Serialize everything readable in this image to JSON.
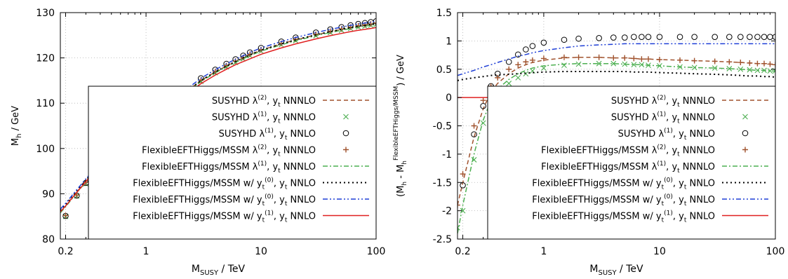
{
  "chart_data": [
    {
      "type": "line",
      "xscale": "log",
      "xlim": [
        0.18,
        100
      ],
      "ylim": [
        80,
        130
      ],
      "xticks": [
        0.2,
        1,
        10,
        100
      ],
      "xtick_labels": [
        "0.2",
        "1",
        "10",
        "100"
      ],
      "yticks": [
        80,
        90,
        100,
        110,
        120,
        130
      ],
      "ytick_labels": [
        "80",
        "90",
        "100",
        "110",
        "120",
        "130"
      ],
      "xlabel": {
        "main": "M",
        "sub": "SUSY",
        "rest": " / TeV"
      },
      "ylabel": {
        "main": "M",
        "sub": "h",
        "rest": " / GeV"
      },
      "grid": true,
      "legend_position": "bottom-right",
      "x": [
        0.18,
        0.2,
        0.25,
        0.3,
        0.4,
        0.5,
        0.6,
        0.7,
        0.8,
        0.9,
        1,
        1.5,
        2,
        3,
        4,
        5,
        6,
        7,
        8,
        10,
        15,
        20,
        30,
        40,
        50,
        60,
        70,
        80,
        90,
        100
      ],
      "series": [
        {
          "name": "SUSYHD λ(2), yt NNNLO",
          "style": "dashed",
          "color": "#a0522d",
          "values": [
            86.0,
            87.3,
            90.4,
            92.8,
            96.3,
            98.9,
            100.8,
            102.4,
            103.7,
            104.8,
            105.7,
            109.5,
            111.6,
            115.0,
            116.9,
            118.2,
            119.2,
            120.0,
            120.7,
            121.7,
            123.1,
            124.0,
            125.1,
            125.8,
            126.3,
            126.7,
            127.0,
            127.2,
            127.4,
            127.6
          ]
        },
        {
          "name": "SUSYHD λ(1), yt NNNLO",
          "style": "points",
          "marker": "x",
          "color": "#4caf50",
          "values": [
            null,
            85.0,
            89.5,
            92.2,
            96.0,
            98.6,
            100.6,
            102.2,
            103.5,
            104.6,
            105.5,
            109.3,
            111.4,
            114.8,
            116.7,
            118.0,
            119.0,
            119.8,
            120.5,
            121.5,
            122.9,
            123.8,
            124.9,
            125.6,
            126.1,
            126.5,
            126.8,
            127.0,
            127.2,
            127.4
          ]
        },
        {
          "name": "SUSYHD λ(1), yt NNLO",
          "style": "points",
          "marker": "circle",
          "color": "#000000",
          "values": [
            null,
            85.1,
            89.6,
            92.4,
            96.3,
            98.9,
            101.0,
            102.6,
            104.0,
            105.1,
            106.0,
            109.9,
            112.0,
            115.5,
            117.4,
            118.7,
            119.7,
            120.5,
            121.2,
            122.2,
            123.6,
            124.5,
            125.6,
            126.3,
            126.8,
            127.2,
            127.5,
            127.7,
            127.9,
            128.1
          ]
        },
        {
          "name": "FlexibleEFTHiggs/MSSM λ(2), yt NNNLO",
          "style": "points",
          "marker": "plus",
          "color": "#a0522d",
          "values": [
            null,
            85.2,
            89.7,
            92.5,
            96.4,
            99.0,
            101.0,
            102.6,
            103.9,
            105.0,
            105.9,
            109.7,
            111.7,
            115.1,
            117.0,
            118.3,
            119.3,
            120.1,
            120.8,
            121.8,
            123.2,
            124.1,
            125.2,
            125.9,
            126.4,
            126.8,
            127.1,
            127.3,
            127.5,
            127.7
          ]
        },
        {
          "name": "FlexibleEFTHiggs/MSSM λ(1), yt NNNLO",
          "style": "dashdot",
          "color": "#4caf50",
          "values": [
            85.8,
            87.1,
            90.2,
            92.6,
            96.1,
            98.7,
            100.6,
            102.2,
            103.5,
            104.6,
            105.5,
            109.3,
            111.4,
            114.8,
            116.7,
            118.0,
            119.0,
            119.8,
            120.5,
            121.5,
            122.9,
            123.8,
            124.9,
            125.6,
            126.1,
            126.5,
            126.8,
            127.0,
            127.2,
            127.4
          ]
        },
        {
          "name": "FlexibleEFTHiggs/MSSM w/ yt(0), yt NNLO",
          "style": "dotted",
          "color": "#000000",
          "values": [
            86.3,
            87.6,
            90.6,
            93.0,
            96.5,
            99.0,
            100.9,
            102.5,
            103.8,
            104.9,
            105.8,
            109.5,
            111.6,
            115.0,
            116.9,
            118.2,
            119.2,
            120.0,
            120.7,
            121.7,
            123.1,
            124.0,
            125.1,
            125.8,
            126.3,
            126.7,
            127.0,
            127.2,
            127.4,
            127.6
          ]
        },
        {
          "name": "FlexibleEFTHiggs/MSSM w/ yt(0), yt NNLO",
          "style": "dashdotdot",
          "color": "#1f3fd6",
          "values": [
            86.6,
            87.9,
            90.9,
            93.3,
            96.8,
            99.4,
            101.3,
            102.9,
            104.2,
            105.3,
            106.2,
            110.0,
            112.1,
            115.5,
            117.4,
            118.7,
            119.7,
            120.5,
            121.2,
            122.2,
            123.6,
            124.5,
            125.6,
            126.3,
            126.8,
            127.2,
            127.5,
            127.7,
            127.9,
            128.1
          ]
        },
        {
          "name": "FlexibleEFTHiggs/MSSM w/ yt(1), yt NNLO",
          "style": "solid",
          "color": "#e02020",
          "values": [
            86.0,
            87.3,
            90.3,
            92.7,
            96.2,
            98.7,
            100.6,
            102.1,
            103.4,
            104.4,
            105.3,
            109.0,
            111.0,
            114.3,
            116.2,
            117.5,
            118.5,
            119.2,
            119.8,
            120.8,
            122.2,
            123.1,
            124.2,
            124.9,
            125.4,
            125.8,
            126.1,
            126.3,
            126.5,
            126.7
          ]
        }
      ]
    },
    {
      "type": "line",
      "xscale": "log",
      "xlim": [
        0.18,
        100
      ],
      "ylim": [
        -2.5,
        1.5
      ],
      "xticks": [
        0.2,
        1,
        10,
        100
      ],
      "xtick_labels": [
        "0.2",
        "1",
        "10",
        "100"
      ],
      "yticks": [
        -2.5,
        -2,
        -1.5,
        -1,
        -0.5,
        0,
        0.5,
        1,
        1.5
      ],
      "ytick_labels": [
        "-2.5",
        "-2",
        "-1.5",
        "-1",
        "-0.5",
        "0",
        "0.5",
        "1",
        "1.5"
      ],
      "xlabel": {
        "main": "M",
        "sub": "SUSY",
        "rest": " / TeV"
      },
      "ylabel": {
        "open": "(M",
        "sub1": "h",
        "mid": " - M",
        "sub2": "h",
        "sup": "FlexibleEFTHiggs/MSSM",
        "close": ") / GeV"
      },
      "grid": true,
      "legend_position": "bottom-right",
      "x": [
        0.18,
        0.2,
        0.25,
        0.3,
        0.35,
        0.4,
        0.5,
        0.6,
        0.7,
        0.8,
        1,
        1.5,
        2,
        3,
        4,
        5,
        6,
        7,
        8,
        10,
        15,
        20,
        30,
        40,
        50,
        60,
        70,
        80,
        90,
        100
      ],
      "series": [
        {
          "name": "SUSYHD λ(2), yt NNNLO",
          "style": "dashed",
          "color": "#a0522d",
          "values": [
            -1.9,
            -1.5,
            -0.7,
            -0.2,
            0.1,
            0.25,
            0.42,
            0.52,
            0.58,
            0.62,
            0.66,
            0.7,
            0.71,
            0.71,
            0.7,
            0.7,
            0.69,
            0.68,
            0.68,
            0.67,
            0.66,
            0.65,
            0.64,
            0.63,
            0.62,
            0.61,
            0.6,
            0.6,
            0.59,
            0.58
          ]
        },
        {
          "name": "SUSYHD λ(1), yt NNNLO",
          "style": "points",
          "marker": "x",
          "color": "#4caf50",
          "values": [
            -2.3,
            -2.0,
            -1.1,
            -0.45,
            -0.1,
            0.08,
            0.25,
            0.35,
            0.42,
            0.47,
            0.52,
            0.57,
            0.59,
            0.6,
            0.6,
            0.59,
            0.58,
            0.58,
            0.57,
            0.56,
            0.54,
            0.53,
            0.52,
            0.51,
            0.5,
            0.49,
            0.48,
            0.48,
            0.47,
            0.47
          ]
        },
        {
          "name": "SUSYHD λ(1), yt NNLO",
          "style": "points",
          "marker": "circle",
          "color": "#000000",
          "values": [
            null,
            -1.55,
            -0.65,
            -0.15,
            0.2,
            0.42,
            0.63,
            0.76,
            0.85,
            0.91,
            0.97,
            1.02,
            1.04,
            1.05,
            1.06,
            1.06,
            1.07,
            1.07,
            1.07,
            1.07,
            1.07,
            1.07,
            1.07,
            1.07,
            1.07,
            1.07,
            1.07,
            1.07,
            1.07,
            1.07
          ]
        },
        {
          "name": "FlexibleEFTHiggs/MSSM λ(2), yt NNNLO",
          "style": "points",
          "marker": "plus",
          "color": "#a0522d",
          "values": [
            -1.9,
            -1.35,
            -0.5,
            -0.05,
            0.2,
            0.35,
            0.5,
            0.58,
            0.63,
            0.66,
            0.69,
            0.71,
            0.71,
            0.71,
            0.7,
            0.7,
            0.69,
            0.68,
            0.68,
            0.67,
            0.66,
            0.65,
            0.64,
            0.63,
            0.62,
            0.61,
            0.6,
            0.6,
            0.59,
            0.58
          ]
        },
        {
          "name": "FlexibleEFTHiggs/MSSM λ(1), yt NNNLO",
          "style": "dashdot",
          "color": "#4caf50",
          "values": [
            -2.4,
            -1.9,
            -1.0,
            -0.4,
            -0.05,
            0.15,
            0.32,
            0.42,
            0.48,
            0.52,
            0.56,
            0.59,
            0.6,
            0.6,
            0.6,
            0.59,
            0.58,
            0.58,
            0.57,
            0.56,
            0.54,
            0.53,
            0.52,
            0.51,
            0.5,
            0.49,
            0.48,
            0.48,
            0.47,
            0.47
          ]
        },
        {
          "name": "FlexibleEFTHiggs/MSSM w/ yt(0), yt NNLO",
          "style": "dotted",
          "color": "#000000",
          "values": [
            0.3,
            0.32,
            0.35,
            0.37,
            0.39,
            0.4,
            0.41,
            0.42,
            0.43,
            0.44,
            0.45,
            0.46,
            0.46,
            0.46,
            0.46,
            0.46,
            0.45,
            0.45,
            0.45,
            0.44,
            0.43,
            0.42,
            0.41,
            0.4,
            0.39,
            0.38,
            0.38,
            0.37,
            0.37,
            0.36
          ]
        },
        {
          "name": "FlexibleEFTHiggs/MSSM w/ yt(0), yt NNLO",
          "style": "dashdotdot",
          "color": "#1f3fd6",
          "values": [
            0.39,
            0.42,
            0.48,
            0.54,
            0.58,
            0.62,
            0.68,
            0.73,
            0.76,
            0.79,
            0.83,
            0.88,
            0.91,
            0.93,
            0.94,
            0.95,
            0.95,
            0.95,
            0.95,
            0.95,
            0.95,
            0.95,
            0.95,
            0.95,
            0.95,
            0.95,
            0.95,
            0.95,
            0.95,
            0.95
          ]
        },
        {
          "name": "FlexibleEFTHiggs/MSSM w/ yt(1), yt NNLO",
          "style": "solid",
          "color": "#e02020",
          "values": [
            0,
            0,
            0,
            0,
            0,
            0,
            0,
            0,
            0,
            0,
            0,
            0,
            0,
            0,
            0,
            0,
            0,
            0,
            0,
            0,
            0,
            0,
            0,
            0,
            0,
            0,
            0,
            0,
            0,
            0
          ]
        }
      ]
    }
  ]
}
